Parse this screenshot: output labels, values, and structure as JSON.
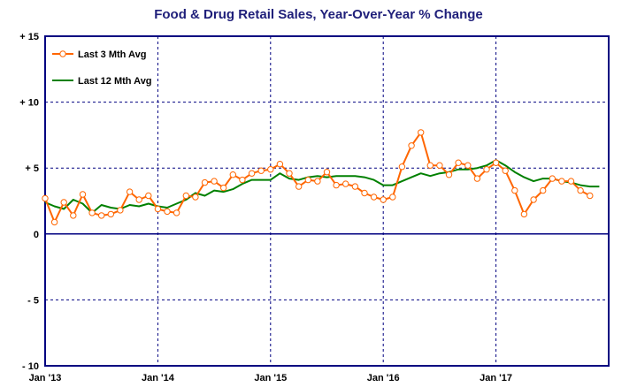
{
  "chart_data": {
    "type": "line",
    "title": "Food & Drug Retail Sales, Year-Over-Year % Change",
    "xlabel": "",
    "ylabel": "",
    "ylim": [
      -10,
      15
    ],
    "yticks": [
      {
        "value": 15,
        "label": "+ 15"
      },
      {
        "value": 10,
        "label": "+ 10"
      },
      {
        "value": 5,
        "label": "+ 5"
      },
      {
        "value": 0,
        "label": "0"
      },
      {
        "value": -5,
        "label": "- 5"
      },
      {
        "value": -10,
        "label": "- 10"
      }
    ],
    "xlim": [
      "2013-01",
      "2017-12"
    ],
    "xticks": [
      {
        "value": "2013-01",
        "label": "Jan '13"
      },
      {
        "value": "2014-01",
        "label": "Jan '14"
      },
      {
        "value": "2015-01",
        "label": "Jan '15"
      },
      {
        "value": "2016-01",
        "label": "Jan '16"
      },
      {
        "value": "2017-01",
        "label": "Jan '17"
      }
    ],
    "grid": true,
    "legend": "top-left",
    "x": [
      "2013-01",
      "2013-02",
      "2013-03",
      "2013-04",
      "2013-05",
      "2013-06",
      "2013-07",
      "2013-08",
      "2013-09",
      "2013-10",
      "2013-11",
      "2013-12",
      "2014-01",
      "2014-02",
      "2014-03",
      "2014-04",
      "2014-05",
      "2014-06",
      "2014-07",
      "2014-08",
      "2014-09",
      "2014-10",
      "2014-11",
      "2014-12",
      "2015-01",
      "2015-02",
      "2015-03",
      "2015-04",
      "2015-05",
      "2015-06",
      "2015-07",
      "2015-08",
      "2015-09",
      "2015-10",
      "2015-11",
      "2015-12",
      "2016-01",
      "2016-02",
      "2016-03",
      "2016-04",
      "2016-05",
      "2016-06",
      "2016-07",
      "2016-08",
      "2016-09",
      "2016-10",
      "2016-11",
      "2016-12",
      "2017-01",
      "2017-02",
      "2017-03",
      "2017-04",
      "2017-05",
      "2017-06",
      "2017-07",
      "2017-08",
      "2017-09",
      "2017-10",
      "2017-11",
      "2017-12"
    ],
    "series": [
      {
        "name": "Last 3 Mth Avg",
        "color": "#ff6600",
        "marker": "circle",
        "values": [
          2.7,
          0.9,
          2.4,
          1.4,
          3.0,
          1.6,
          1.4,
          1.5,
          1.8,
          3.2,
          2.6,
          2.9,
          1.9,
          1.7,
          1.6,
          2.9,
          2.8,
          3.9,
          4.0,
          3.5,
          4.5,
          4.1,
          4.6,
          4.8,
          4.9,
          5.3,
          4.6,
          3.6,
          4.1,
          4.0,
          4.7,
          3.7,
          3.8,
          3.6,
          3.1,
          2.8,
          2.6,
          2.8,
          5.1,
          6.7,
          7.7,
          5.2,
          5.2,
          4.5,
          5.4,
          5.2,
          4.2,
          4.9,
          5.4,
          4.8,
          3.3,
          1.5,
          2.6,
          3.3,
          4.2,
          4.0,
          4.0,
          3.3,
          2.9,
          null
        ]
      },
      {
        "name": "Last 12 Mth Avg",
        "color": "#008000",
        "marker": "none",
        "values": [
          2.4,
          2.1,
          1.9,
          2.6,
          2.3,
          1.6,
          2.2,
          2.0,
          1.9,
          2.2,
          2.1,
          2.3,
          2.1,
          2.0,
          2.3,
          2.6,
          3.1,
          2.9,
          3.3,
          3.2,
          3.4,
          3.8,
          4.1,
          4.1,
          4.1,
          4.6,
          4.2,
          4.1,
          4.3,
          4.4,
          4.3,
          4.4,
          4.4,
          4.4,
          4.3,
          4.1,
          3.7,
          3.7,
          4.0,
          4.3,
          4.6,
          4.4,
          4.6,
          4.7,
          4.9,
          4.9,
          5.0,
          5.2,
          5.6,
          5.2,
          4.7,
          4.3,
          4.0,
          4.2,
          4.2,
          4.0,
          3.9,
          3.7,
          3.6,
          3.6
        ]
      }
    ]
  },
  "colors": {
    "title": "#1f1f7a",
    "frame": "#000080",
    "grid": "#000080",
    "background": "#ffffff"
  }
}
